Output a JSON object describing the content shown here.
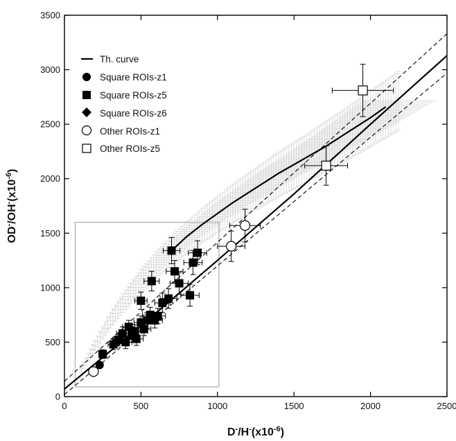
{
  "chart_data": {
    "type": "scatter",
    "title": "",
    "xlabel": {
      "base": "D",
      "sup1": "-",
      "mid": "/H",
      "sup2": "-",
      "post": "(x10",
      "sup3": "-6",
      "end": ")"
    },
    "ylabel": {
      "base": "OD",
      "sup1": "-",
      "mid": "/OH",
      "sup2": "-",
      "post": "(x10",
      "sup3": "-6",
      "end": ")"
    },
    "xlim": [
      0,
      2500
    ],
    "ylim": [
      0,
      3500
    ],
    "xticks": [
      "0",
      "500",
      "1000",
      "1500",
      "2000",
      "2500"
    ],
    "yticks": [
      "0",
      "500",
      "1000",
      "1500",
      "2000",
      "2500",
      "3000",
      "3500"
    ],
    "grid": false,
    "legend": {
      "position": "top-left",
      "entries": [
        "Th. curve",
        "Square ROIs-z1",
        "Square ROIs-z5",
        "Square ROIs-z6",
        "Other ROIs-z1",
        "Other ROIs-z5"
      ]
    },
    "inset_box": {
      "x": [
        70,
        1010
      ],
      "y": [
        90,
        1600
      ]
    },
    "series": [
      {
        "name": "Th. curve",
        "kind": "line",
        "style": "solid",
        "x": [
          0,
          500,
          1000,
          1500,
          2000,
          2500
        ],
        "y": [
          70,
          650,
          1250,
          1860,
          2500,
          3130
        ]
      },
      {
        "kind": "line",
        "style": "solid",
        "x": [
          700,
          800,
          900,
          1000,
          1100,
          1200,
          1300,
          1400,
          1500,
          1600,
          1700,
          1800,
          1900,
          2000,
          2100
        ],
        "y": [
          1340,
          1470,
          1580,
          1680,
          1780,
          1870,
          1960,
          2050,
          2130,
          2210,
          2290,
          2380,
          2470,
          2560,
          2660
        ]
      },
      {
        "kind": "line",
        "style": "dashed",
        "x": [
          0,
          2500
        ],
        "y": [
          140,
          3330
        ]
      },
      {
        "kind": "line",
        "style": "dashed",
        "x": [
          0,
          2500
        ],
        "y": [
          20,
          2970
        ]
      },
      {
        "name": "Square ROIs-z1",
        "kind": "marker",
        "marker": "filled-circle",
        "points": [
          {
            "x": 230,
            "y": 290,
            "xerr": 20,
            "yerr": 25
          }
        ]
      },
      {
        "name": "Square ROIs-z5",
        "kind": "marker",
        "marker": "filled-square",
        "points": [
          {
            "x": 250,
            "y": 390,
            "xerr": 25,
            "yerr": 40
          },
          {
            "x": 320,
            "y": 480,
            "xerr": 35,
            "yerr": 50
          },
          {
            "x": 350,
            "y": 520,
            "xerr": 35,
            "yerr": 50
          },
          {
            "x": 380,
            "y": 580,
            "xerr": 40,
            "yerr": 60
          },
          {
            "x": 400,
            "y": 500,
            "xerr": 40,
            "yerr": 60
          },
          {
            "x": 420,
            "y": 640,
            "xerr": 40,
            "yerr": 60
          },
          {
            "x": 440,
            "y": 560,
            "xerr": 45,
            "yerr": 60
          },
          {
            "x": 460,
            "y": 600,
            "xerr": 45,
            "yerr": 60
          },
          {
            "x": 470,
            "y": 530,
            "xerr": 45,
            "yerr": 60
          },
          {
            "x": 500,
            "y": 680,
            "xerr": 45,
            "yerr": 60
          },
          {
            "x": 520,
            "y": 620,
            "xerr": 45,
            "yerr": 60
          },
          {
            "x": 540,
            "y": 700,
            "xerr": 50,
            "yerr": 70
          },
          {
            "x": 560,
            "y": 750,
            "xerr": 50,
            "yerr": 70
          },
          {
            "x": 590,
            "y": 700,
            "xerr": 50,
            "yerr": 70
          },
          {
            "x": 610,
            "y": 740,
            "xerr": 50,
            "yerr": 70
          },
          {
            "x": 500,
            "y": 880,
            "xerr": 40,
            "yerr": 80
          },
          {
            "x": 570,
            "y": 1060,
            "xerr": 50,
            "yerr": 90
          },
          {
            "x": 640,
            "y": 860,
            "xerr": 50,
            "yerr": 90
          },
          {
            "x": 680,
            "y": 900,
            "xerr": 55,
            "yerr": 90
          },
          {
            "x": 700,
            "y": 1340,
            "xerr": 55,
            "yerr": 120
          },
          {
            "x": 720,
            "y": 1150,
            "xerr": 55,
            "yerr": 100
          },
          {
            "x": 750,
            "y": 1040,
            "xerr": 60,
            "yerr": 100
          },
          {
            "x": 820,
            "y": 930,
            "xerr": 60,
            "yerr": 100
          },
          {
            "x": 840,
            "y": 1230,
            "xerr": 60,
            "yerr": 110
          },
          {
            "x": 870,
            "y": 1320,
            "xerr": 60,
            "yerr": 110
          }
        ]
      },
      {
        "name": "Square ROIs-z6",
        "kind": "marker",
        "marker": "filled-diamond",
        "points": []
      },
      {
        "name": "Other ROIs-z1",
        "kind": "marker",
        "marker": "open-circle",
        "points": [
          {
            "x": 190,
            "y": 230,
            "xerr": 20,
            "yerr": 25
          },
          {
            "x": 1090,
            "y": 1380,
            "xerr": 90,
            "yerr": 140
          },
          {
            "x": 1180,
            "y": 1570,
            "xerr": 100,
            "yerr": 150
          }
        ]
      },
      {
        "name": "Other ROIs-z5",
        "kind": "marker",
        "marker": "open-square",
        "points": [
          {
            "x": 1710,
            "y": 2120,
            "xerr": 140,
            "yerr": 180
          },
          {
            "x": 1950,
            "y": 2810,
            "xerr": 200,
            "yerr": 240
          }
        ]
      }
    ],
    "shaded_band": {
      "color": "#bdbdbd",
      "x": [
        110,
        200,
        300,
        400,
        500,
        600,
        700,
        800,
        900,
        1000,
        1100,
        1200,
        1300,
        1400,
        1500,
        1600,
        1700,
        1800,
        1900,
        2000,
        2100,
        2200
      ],
      "y": [
        250,
        470,
        700,
        890,
        1060,
        1210,
        1340,
        1460,
        1570,
        1670,
        1770,
        1860,
        1950,
        2040,
        2120,
        2200,
        2290,
        2370,
        2460,
        2550,
        2640,
        2730
      ]
    },
    "colors": {
      "markers": "#000000",
      "band": "#bdbdbd",
      "inset": "#b8b8b8"
    }
  }
}
